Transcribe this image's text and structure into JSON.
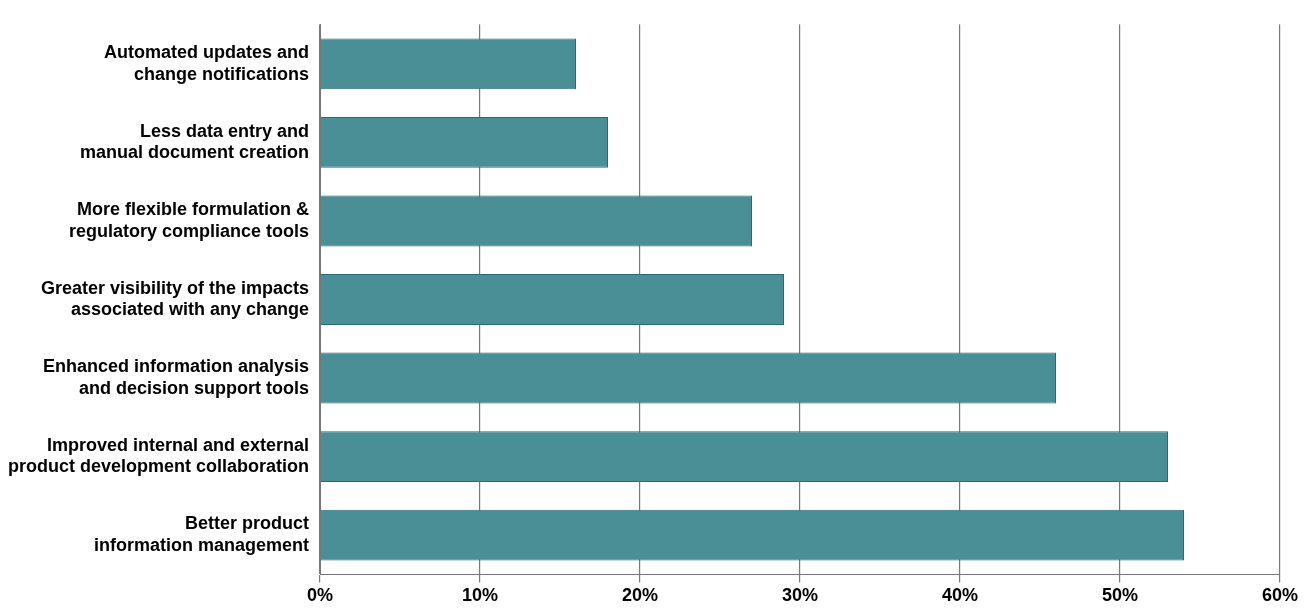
{
  "chart_data": {
    "type": "bar",
    "orientation": "horizontal",
    "categories": [
      "Automated updates and change notifications",
      "Less data entry and manual document creation",
      "More flexible formulation & regulatory compliance tools",
      "Greater visibility of the impacts associated with any change",
      "Enhanced information analysis and decision support tools",
      "Improved internal and external product development collaboration",
      "Better product information management"
    ],
    "values": [
      16,
      18,
      27,
      29,
      46,
      53,
      54
    ],
    "color": "#4a8f96",
    "xlim": [
      0,
      60
    ],
    "xticks": [
      {
        "value": 0,
        "label": "0%"
      },
      {
        "value": 10,
        "label": "10%"
      },
      {
        "value": 20,
        "label": "20%"
      },
      {
        "value": 30,
        "label": "30%"
      },
      {
        "value": 40,
        "label": "40%"
      },
      {
        "value": 50,
        "label": "50%"
      },
      {
        "value": 60,
        "label": "60%"
      }
    ],
    "grid": "x"
  }
}
